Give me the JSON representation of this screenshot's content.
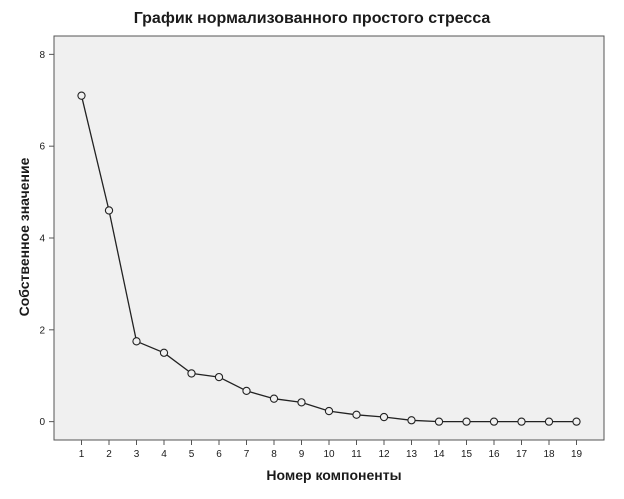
{
  "chart_data": {
    "type": "line",
    "title": "График нормализованного простого стресса",
    "xlabel": "Номер компоненты",
    "ylabel": "Собственное значение",
    "x": [
      1,
      2,
      3,
      4,
      5,
      6,
      7,
      8,
      9,
      10,
      11,
      12,
      13,
      14,
      15,
      16,
      17,
      18,
      19
    ],
    "series": [
      {
        "values": [
          7.1,
          4.6,
          1.75,
          1.5,
          1.05,
          0.97,
          0.67,
          0.5,
          0.42,
          0.23,
          0.15,
          0.1,
          0.03,
          0.0,
          0.0,
          0.0,
          0.0,
          0.0,
          0.0
        ]
      }
    ],
    "y_ticks": [
      0,
      2,
      4,
      6,
      8
    ],
    "ylim": [
      -0.4,
      8.4
    ],
    "xlim": [
      0,
      20
    ],
    "grid": false,
    "marker": "open-circle",
    "colors": {
      "plot_background": "#f0f0f0",
      "line": "#222222",
      "frame": "#555555"
    }
  }
}
